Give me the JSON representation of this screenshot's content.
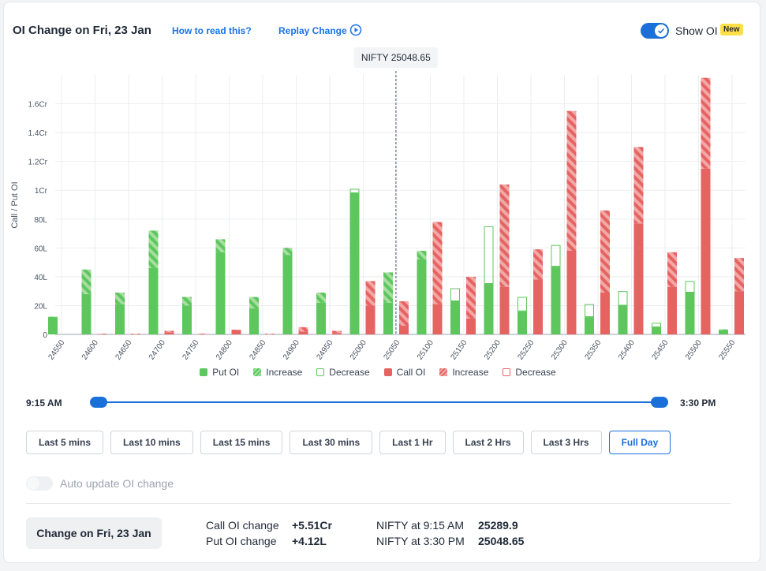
{
  "header": {
    "title": "OI Change on Fri, 23 Jan",
    "how_to_read": "How to read this?",
    "replay": "Replay Change",
    "show_oi": "Show OI",
    "new_badge": "New"
  },
  "colors": {
    "put": "#5dc75e",
    "put_inc": "#a7dda1",
    "call": "#e56462",
    "call_inc": "#f2a8a7",
    "accent": "#1a6fd8"
  },
  "chart_data": {
    "type": "bar",
    "title": "",
    "ylabel": "Call / Put OI",
    "xlabel": "",
    "ylim": [
      0,
      1.8
    ],
    "unit": "Cr",
    "yticks": [
      {
        "v": 0,
        "label": "0"
      },
      {
        "v": 0.2,
        "label": "20L"
      },
      {
        "v": 0.4,
        "label": "40L"
      },
      {
        "v": 0.6,
        "label": "60L"
      },
      {
        "v": 0.8,
        "label": "80L"
      },
      {
        "v": 1.0,
        "label": "1Cr"
      },
      {
        "v": 1.2,
        "label": "1.2Cr"
      },
      {
        "v": 1.4,
        "label": "1.4Cr"
      },
      {
        "v": 1.6,
        "label": "1.6Cr"
      }
    ],
    "categories": [
      "24550",
      "24600",
      "24650",
      "24700",
      "24750",
      "24800",
      "24850",
      "24900",
      "24950",
      "25000",
      "25050",
      "25100",
      "25150",
      "25200",
      "25250",
      "25300",
      "25350",
      "25400",
      "25450",
      "25500",
      "25550"
    ],
    "spot": {
      "label": "NIFTY 25048.65",
      "value": 25048.65
    },
    "series": [
      {
        "name": "Put OI",
        "base": [
          0.12,
          0.28,
          0.21,
          0.46,
          0.2,
          0.57,
          0.18,
          0.55,
          0.22,
          0.98,
          0.22,
          0.52,
          0.23,
          0.35,
          0.16,
          0.47,
          0.12,
          0.2,
          0.05,
          0.29,
          0.03
        ],
        "change": [
          0.003,
          0.17,
          0.08,
          0.26,
          0.06,
          0.09,
          0.08,
          0.05,
          0.07,
          -0.03,
          0.21,
          0.06,
          -0.09,
          -0.4,
          -0.1,
          -0.15,
          -0.09,
          -0.1,
          -0.03,
          -0.08,
          0.005
        ]
      },
      {
        "name": "Call OI",
        "base": [
          0.0,
          0.0,
          0.0,
          0.015,
          0.0,
          0.03,
          0.0,
          0.02,
          0.01,
          0.2,
          0.06,
          0.21,
          0.11,
          0.33,
          0.38,
          0.58,
          0.29,
          0.77,
          0.33,
          1.15,
          0.3
        ],
        "change": [
          0.0,
          0.005,
          0.005,
          0.01,
          0.005,
          0.003,
          0.005,
          0.03,
          0.015,
          0.17,
          0.17,
          0.57,
          0.29,
          0.71,
          0.21,
          0.97,
          0.57,
          0.53,
          0.24,
          0.63,
          0.23
        ]
      }
    ],
    "legend": [
      "Put OI",
      "Increase",
      "Decrease",
      "Call OI",
      "Increase",
      "Decrease"
    ],
    "legend_position": "bottom",
    "grid": true
  },
  "slider": {
    "start": "9:15 AM",
    "end": "3:30 PM"
  },
  "ranges": [
    "Last 5 mins",
    "Last 10 mins",
    "Last 15 mins",
    "Last 30 mins",
    "Last 1 Hr",
    "Last 2 Hrs",
    "Last 3 Hrs",
    "Full Day"
  ],
  "active_range": "Full Day",
  "auto_update": "Auto update OI change",
  "footer": {
    "change_button": "Change on Fri, 23 Jan",
    "call_label": "Call OI change",
    "call_value": "+5.51Cr",
    "put_label": "Put OI change",
    "put_value": "+4.12L",
    "nifty_start_label": "NIFTY at 9:15 AM",
    "nifty_start_value": "25289.9",
    "nifty_end_label": "NIFTY at 3:30 PM",
    "nifty_end_value": "25048.65"
  }
}
